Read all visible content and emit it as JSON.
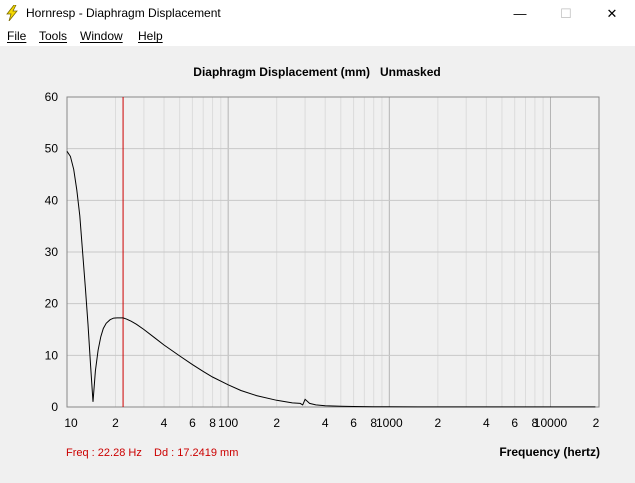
{
  "window": {
    "title": "Hornresp - Diaphragm Displacement",
    "minimize_glyph": "—",
    "maximize_glyph": "☐",
    "close_glyph": "✕",
    "icon": "lightning-bolt-icon"
  },
  "menu": [
    {
      "label": "File"
    },
    {
      "label": "Tools"
    },
    {
      "label": "Window"
    },
    {
      "label": "Help"
    }
  ],
  "status": {
    "freq_readout": "Freq : 22.28 Hz",
    "dd_readout": "Dd : 17.2419 mm"
  },
  "colors": {
    "cursor": "#cc0000",
    "grid": "#c8c8c8",
    "curve": "#000000",
    "readout": "#cc0000"
  },
  "chart_data": {
    "type": "line",
    "title": "Diaphragm Displacement (mm)   Unmasked",
    "xlabel": "Frequency (hertz)",
    "ylabel": "",
    "x_scale": "log",
    "xlim": [
      10,
      20000
    ],
    "ylim": [
      0,
      60
    ],
    "y_ticks": [
      "0",
      "10",
      "20",
      "30",
      "40",
      "50",
      "60"
    ],
    "x_tick_labels": [
      {
        "value": 10,
        "label": "10"
      },
      {
        "value": 20,
        "label": "2"
      },
      {
        "value": 40,
        "label": "4"
      },
      {
        "value": 60,
        "label": "6"
      },
      {
        "value": 80,
        "label": "8"
      },
      {
        "value": 100,
        "label": "100"
      },
      {
        "value": 200,
        "label": "2"
      },
      {
        "value": 400,
        "label": "4"
      },
      {
        "value": 600,
        "label": "6"
      },
      {
        "value": 800,
        "label": "8"
      },
      {
        "value": 1000,
        "label": "1000"
      },
      {
        "value": 2000,
        "label": "2"
      },
      {
        "value": 4000,
        "label": "4"
      },
      {
        "value": 6000,
        "label": "6"
      },
      {
        "value": 8000,
        "label": "8"
      },
      {
        "value": 10000,
        "label": "10000"
      },
      {
        "value": 20000,
        "label": "2"
      }
    ],
    "grid": true,
    "cursor_freq": 22.28,
    "series": [
      {
        "x": [
          10,
          10.5,
          11,
          11.5,
          12,
          12.5,
          13,
          13.5,
          14,
          14.5,
          15,
          15.6,
          16.2,
          16.8,
          17.5,
          18.5,
          19.5,
          20.5,
          21.5,
          22.28,
          23.5,
          25,
          27,
          30,
          35,
          40,
          50,
          60,
          70,
          80,
          100,
          120,
          150,
          200,
          250,
          280,
          290,
          300,
          320,
          350,
          400,
          500,
          600,
          800,
          1000,
          1500,
          2000,
          3000,
          5000,
          10000,
          19000
        ],
        "y": [
          49.5,
          48.5,
          46,
          42,
          37,
          30,
          23,
          16,
          8,
          1,
          7,
          11,
          13.6,
          15.2,
          16.2,
          16.9,
          17.2,
          17.24,
          17.24,
          17.24,
          17.0,
          16.6,
          16.0,
          15.0,
          13.4,
          12.0,
          9.9,
          8.2,
          6.9,
          5.8,
          4.3,
          3.2,
          2.2,
          1.3,
          0.8,
          0.7,
          0.4,
          1.5,
          0.7,
          0.4,
          0.25,
          0.15,
          0.1,
          0.06,
          0.04,
          0.02,
          0.02,
          0.01,
          0.01,
          0.01,
          0.01
        ]
      }
    ]
  }
}
